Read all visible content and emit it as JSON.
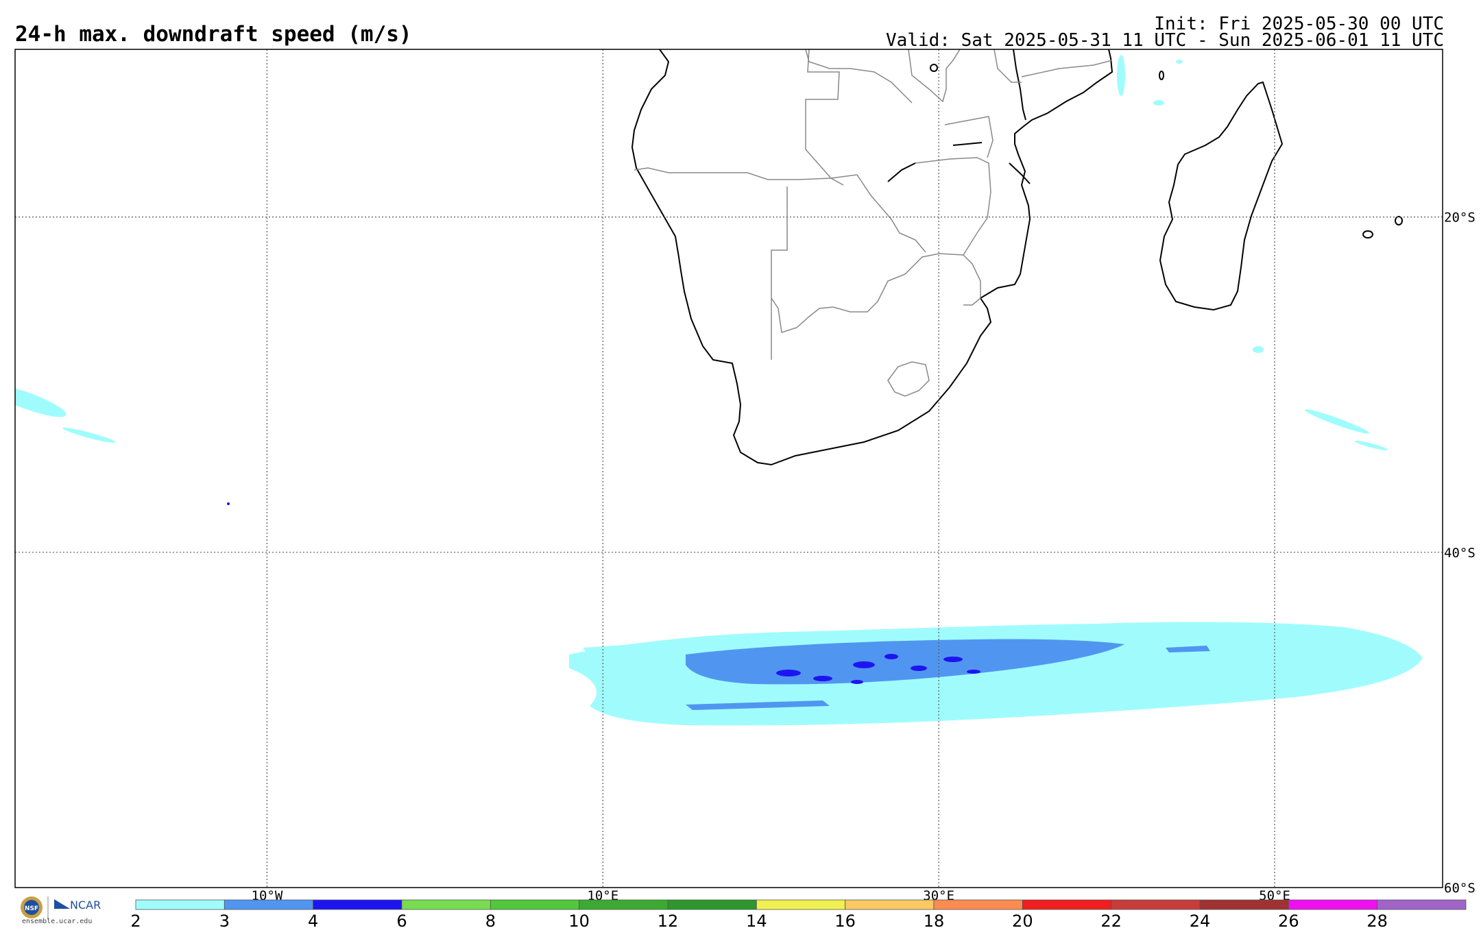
{
  "header": {
    "title": "24-h max. downdraft speed (m/s)",
    "init": "Init: Fri 2025-05-30 00 UTC",
    "valid": "Valid: Sat 2025-05-31 11 UTC - Sun 2025-06-01 11 UTC"
  },
  "map": {
    "projection": "cylindrical",
    "lon_range": [
      -25,
      60
    ],
    "lat_range": [
      -60,
      -10
    ],
    "lon_labels": [
      "10°W",
      "10°E",
      "30°E",
      "50°E"
    ],
    "lon_values": [
      -10,
      10,
      30,
      50
    ],
    "lat_labels": [
      "20°S",
      "40°S",
      "60°S"
    ],
    "lat_values": [
      -20,
      -40,
      -60
    ]
  },
  "colorbar": {
    "ticks": [
      "2",
      "3",
      "4",
      "6",
      "8",
      "10",
      "12",
      "14",
      "16",
      "18",
      "20",
      "22",
      "24",
      "26",
      "28"
    ],
    "colors": [
      "#a0fcfc",
      "#5096f0",
      "#1e14f0",
      "#78dc50",
      "#50c83c",
      "#3caa32",
      "#2d962d",
      "#f0f050",
      "#fac864",
      "#fa8c50",
      "#f01e1e",
      "#c83c3c",
      "#a03232",
      "#f00ff0",
      "#a064c8"
    ]
  },
  "logo": {
    "nsf": "NSF",
    "ncar": "NCAR",
    "site": "ensemble.ucar.edu"
  }
}
